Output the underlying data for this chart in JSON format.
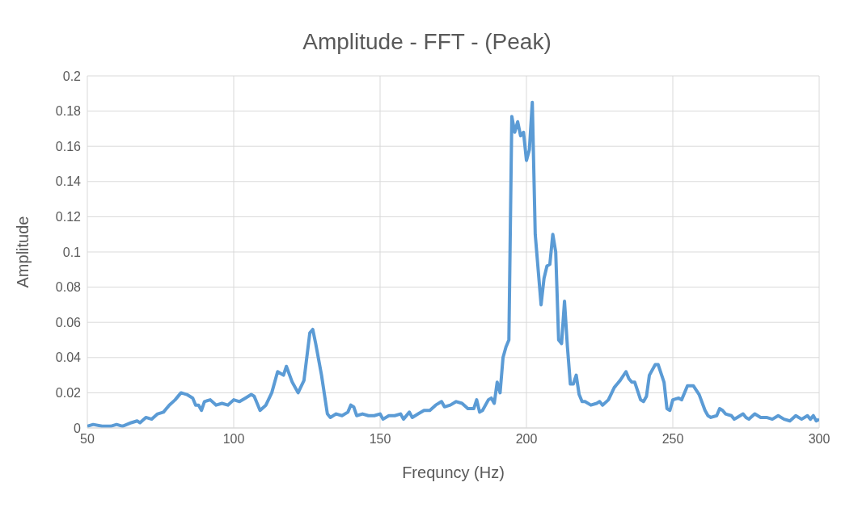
{
  "chart_data": {
    "type": "line",
    "title": "Amplitude - FFT - (Peak)",
    "xlabel": "Frequncy (Hz)",
    "ylabel": "Amplitude",
    "x": [
      50,
      52,
      55,
      58,
      60,
      62,
      65,
      67,
      68,
      70,
      72,
      74,
      76,
      78,
      80,
      82,
      84,
      86,
      87,
      88,
      89,
      90,
      92,
      94,
      96,
      98,
      100,
      102,
      104,
      106,
      107,
      109,
      111,
      113,
      115,
      117,
      118,
      120,
      122,
      124,
      126,
      127,
      128,
      130,
      132,
      133,
      135,
      137,
      139,
      140,
      141,
      142,
      144,
      146,
      148,
      150,
      151,
      153,
      155,
      157,
      158,
      160,
      161,
      163,
      165,
      167,
      169,
      171,
      172,
      174,
      176,
      178,
      180,
      182,
      183,
      184,
      185,
      187,
      188,
      189,
      190,
      191,
      192,
      193,
      194,
      195,
      196,
      197,
      198,
      199,
      200,
      201,
      202,
      203,
      205,
      206,
      207,
      208,
      209,
      210,
      211,
      212,
      213,
      214,
      215,
      216,
      217,
      218,
      219,
      220,
      222,
      224,
      225,
      226,
      228,
      230,
      232,
      234,
      235,
      236,
      237,
      239,
      240,
      241,
      242,
      244,
      245,
      247,
      248,
      249,
      250,
      252,
      253,
      254,
      255,
      257,
      259,
      261,
      262,
      263,
      265,
      266,
      267,
      268,
      270,
      271,
      272,
      274,
      275,
      276,
      278,
      280,
      282,
      284,
      286,
      288,
      290,
      292,
      294,
      296,
      297,
      298,
      299,
      300
    ],
    "series": [
      {
        "color": "#5b9bd5",
        "values": [
          0.001,
          0.002,
          0.001,
          0.001,
          0.002,
          0.001,
          0.003,
          0.004,
          0.003,
          0.006,
          0.005,
          0.008,
          0.009,
          0.013,
          0.016,
          0.02,
          0.019,
          0.017,
          0.013,
          0.013,
          0.01,
          0.015,
          0.016,
          0.013,
          0.014,
          0.013,
          0.016,
          0.015,
          0.017,
          0.019,
          0.018,
          0.01,
          0.013,
          0.02,
          0.032,
          0.03,
          0.035,
          0.026,
          0.02,
          0.027,
          0.054,
          0.056,
          0.048,
          0.03,
          0.008,
          0.006,
          0.008,
          0.007,
          0.009,
          0.013,
          0.012,
          0.007,
          0.008,
          0.007,
          0.007,
          0.008,
          0.005,
          0.007,
          0.007,
          0.008,
          0.005,
          0.009,
          0.006,
          0.008,
          0.01,
          0.01,
          0.013,
          0.015,
          0.012,
          0.013,
          0.015,
          0.014,
          0.011,
          0.011,
          0.016,
          0.009,
          0.01,
          0.016,
          0.017,
          0.014,
          0.026,
          0.02,
          0.04,
          0.046,
          0.05,
          0.177,
          0.168,
          0.174,
          0.166,
          0.168,
          0.152,
          0.158,
          0.185,
          0.11,
          0.07,
          0.085,
          0.092,
          0.093,
          0.11,
          0.1,
          0.05,
          0.048,
          0.072,
          0.046,
          0.025,
          0.025,
          0.03,
          0.019,
          0.015,
          0.015,
          0.013,
          0.014,
          0.015,
          0.013,
          0.016,
          0.023,
          0.027,
          0.032,
          0.028,
          0.026,
          0.026,
          0.016,
          0.015,
          0.018,
          0.03,
          0.036,
          0.036,
          0.026,
          0.011,
          0.01,
          0.016,
          0.017,
          0.016,
          0.02,
          0.024,
          0.024,
          0.019,
          0.01,
          0.007,
          0.006,
          0.007,
          0.011,
          0.01,
          0.008,
          0.007,
          0.005,
          0.006,
          0.008,
          0.006,
          0.005,
          0.008,
          0.006,
          0.006,
          0.005,
          0.007,
          0.005,
          0.004,
          0.007,
          0.005,
          0.007,
          0.005,
          0.007,
          0.004,
          0.005
        ]
      }
    ],
    "xlim": [
      50,
      300
    ],
    "xticks": [
      50,
      100,
      150,
      200,
      250,
      300
    ],
    "ylim": [
      0,
      0.2
    ],
    "yticks": [
      0,
      0.02,
      0.04,
      0.06,
      0.08,
      0.1,
      0.12,
      0.14,
      0.16,
      0.18,
      0.2
    ],
    "grid": true,
    "legend": false,
    "marker": "none",
    "line_style": "solid"
  }
}
